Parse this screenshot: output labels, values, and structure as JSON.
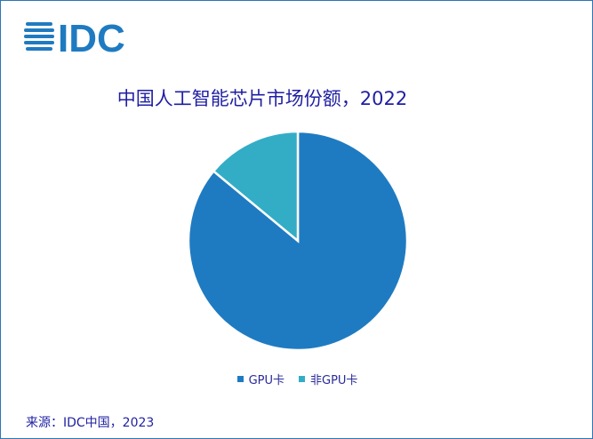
{
  "logo": {
    "text": "IDC",
    "color": "#1f7bc1"
  },
  "chart_data": {
    "type": "pie",
    "title": "中国人工智能芯片市场份额，2022",
    "slices": [
      {
        "label": "GPU卡",
        "value": 86,
        "color": "#1f7bc1"
      },
      {
        "label": "非GPU卡",
        "value": 14,
        "color": "#33adc6"
      }
    ],
    "legend_position": "bottom"
  },
  "source": "来源：IDC中国，2023"
}
